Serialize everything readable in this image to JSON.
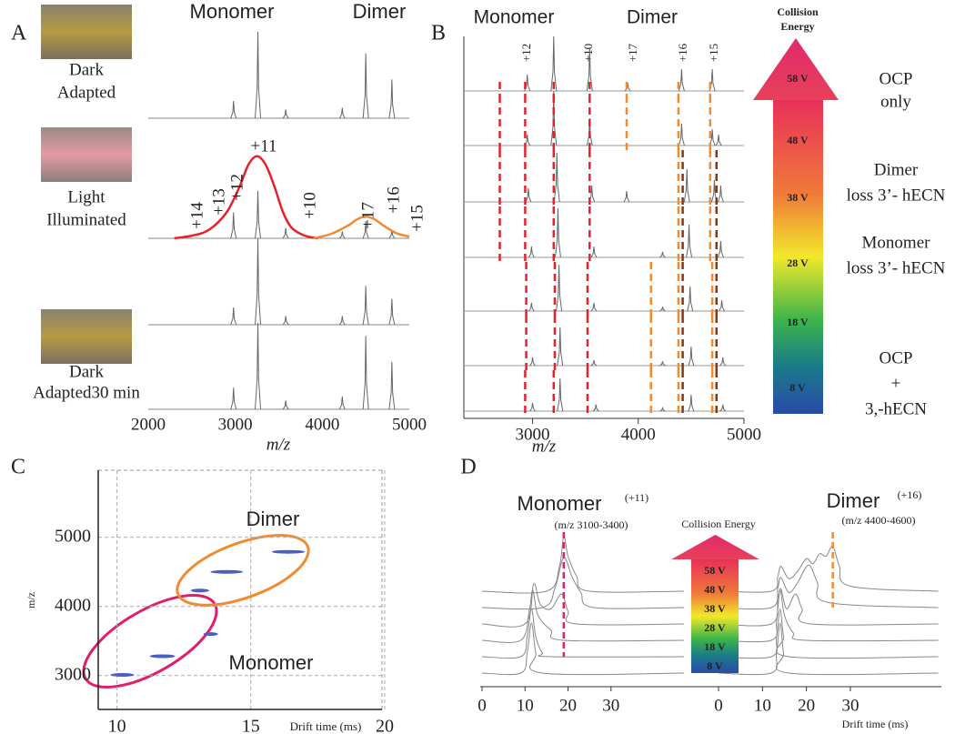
{
  "chart_data": [
    {
      "type": "spectrum",
      "label": "A",
      "annotations": [
        {
          "text": "Monomer",
          "color": "#e8202a"
        },
        {
          "text": "Dimer",
          "color": "#f28a30"
        }
      ],
      "charges": [
        "+14",
        "+13",
        "+12",
        "+11",
        "+10",
        "+17",
        "+16",
        "+15"
      ],
      "xlabel": "m/z",
      "xlim": [
        2000,
        5000
      ],
      "xticks": [
        2000,
        3000,
        4000,
        5000
      ],
      "series": [
        {
          "label": [
            "Dark",
            "Adapted"
          ],
          "color": "#666",
          "x": [
            2980,
            3260,
            3580,
            4230,
            4500,
            4800
          ],
          "values": [
            20,
            100,
            10,
            12,
            75,
            45
          ]
        },
        {
          "label": [
            "Light",
            "Illuminated"
          ],
          "color": "#666",
          "x": [
            2980,
            3260,
            3580,
            4230,
            4500,
            4800
          ],
          "values": [
            30,
            55,
            12,
            8,
            20,
            10
          ],
          "envelopes": [
            {
              "color": "#e8202a",
              "x": [
                2300,
                2500,
                2700,
                2900,
                3050,
                3150,
                3250,
                3350,
                3450,
                3550,
                3650,
                3800,
                3950
              ],
              "values": [
                0,
                3,
                10,
                30,
                60,
                85,
                95,
                85,
                60,
                30,
                12,
                3,
                0
              ]
            },
            {
              "color": "#f28a30",
              "x": [
                3900,
                4100,
                4300,
                4400,
                4500,
                4600,
                4700,
                4850,
                5000
              ],
              "values": [
                0,
                5,
                15,
                22,
                25,
                22,
                15,
                6,
                2
              ]
            }
          ]
        },
        {
          "color": "#666",
          "x": [
            2980,
            3260,
            3580,
            4230,
            4500,
            4800
          ],
          "values": [
            20,
            100,
            10,
            10,
            45,
            30
          ]
        },
        {
          "label": [
            "Dark",
            "Adapted30 min"
          ],
          "color": "#666",
          "x": [
            2980,
            3260,
            3580,
            4230,
            4500,
            4800
          ],
          "values": [
            25,
            100,
            10,
            15,
            85,
            55
          ]
        }
      ]
    },
    {
      "type": "stacked-spectrum",
      "label": "B",
      "annotations": [
        {
          "text": "Monomer",
          "color": "#e8202a"
        },
        {
          "text": "Dimer",
          "color": "#f28a30"
        }
      ],
      "charges": [
        "+12",
        "+10",
        "+17",
        "+16",
        "+15"
      ],
      "xlabel": "m/z",
      "xlim": [
        2350,
        5000
      ],
      "xticks": [
        3000,
        4000,
        5000
      ],
      "colorbar_title": [
        "Collision",
        "Energy"
      ],
      "energies": [
        "58 V",
        "48 V",
        "38 V",
        "28 V",
        "18 V",
        "8 V"
      ],
      "notes": [
        [
          "OCP",
          "only"
        ],
        [
          "Dimer",
          "loss 3’- hECN"
        ],
        [
          "Monomer",
          "loss 3’- hECN"
        ],
        [
          "OCP",
          "+",
          "3,-hECN"
        ]
      ],
      "series": [
        {
          "color": "#666",
          "x": [
            2950,
            3200,
            3540,
            3900,
            4410,
            4700
          ],
          "values": [
            30,
            100,
            80,
            15,
            40,
            40
          ]
        },
        {
          "color": "#666",
          "x": [
            2950,
            3200,
            3540,
            4410,
            4700,
            4760
          ],
          "values": [
            20,
            100,
            50,
            40,
            30,
            20
          ]
        },
        {
          "color": "#666",
          "x": [
            2960,
            3230,
            3560,
            3890,
            4460,
            4720,
            4780
          ],
          "values": [
            25,
            90,
            30,
            20,
            60,
            40,
            30
          ]
        },
        {
          "color": "#666",
          "x": [
            2990,
            3240,
            3580,
            4230,
            4480,
            4780
          ],
          "values": [
            20,
            90,
            20,
            10,
            60,
            30
          ]
        },
        {
          "color": "#666",
          "x": [
            2990,
            3250,
            3580,
            4230,
            4490,
            4790
          ],
          "values": [
            15,
            85,
            15,
            8,
            45,
            20
          ]
        },
        {
          "color": "#666",
          "x": [
            3000,
            3260,
            3580,
            4230,
            4500,
            4800
          ],
          "values": [
            15,
            70,
            10,
            8,
            35,
            15
          ]
        },
        {
          "color": "#666",
          "x": [
            3000,
            3260,
            3600,
            4230,
            4500,
            4800
          ],
          "values": [
            15,
            60,
            12,
            6,
            30,
            12
          ]
        }
      ],
      "dashed": [
        {
          "color": "#e8202a",
          "x": [
            2690,
            2690,
            2690,
            2690,
            null,
            null,
            null
          ]
        },
        {
          "color": "#e8202a",
          "x": [
            2930,
            2930,
            2930,
            2930,
            2940,
            2940,
            2930
          ]
        },
        {
          "color": "#e8202a",
          "x": [
            3200,
            3200,
            3200,
            3200,
            3210,
            3210,
            3200
          ]
        },
        {
          "color": "#e8202a",
          "x": [
            3540,
            3540,
            3540,
            3540,
            3520,
            3520,
            3520
          ]
        },
        {
          "color": "#f28a30",
          "x": [
            3890,
            3890,
            null,
            null,
            null,
            null,
            null
          ]
        },
        {
          "color": "#f28a30",
          "x": [
            null,
            null,
            null,
            null,
            4120,
            4120,
            4120
          ]
        },
        {
          "color": "#f28a30",
          "x": [
            4380,
            4380,
            4380,
            4380,
            4380,
            4380,
            4380
          ]
        },
        {
          "color": "#f28a30",
          "x": [
            4680,
            4680,
            4680,
            4680,
            4700,
            4700,
            4700
          ]
        },
        {
          "color": "#7a3b1e",
          "x": [
            null,
            null,
            4420,
            4420,
            4420,
            4420,
            4420
          ]
        },
        {
          "color": "#7a3b1e",
          "x": [
            null,
            null,
            4740,
            4740,
            4740,
            4740,
            4740
          ]
        }
      ]
    },
    {
      "type": "scatter",
      "label": "C",
      "annotations": [
        {
          "text": "Dimer",
          "color": "#f28a30"
        },
        {
          "text": "Monomer",
          "color": "#e8202a"
        }
      ],
      "xlabel": "Drift time (ms)",
      "ylabel": "m/z",
      "xlim": [
        9.3,
        19.9
      ],
      "ylim": [
        2510,
        5970
      ],
      "xticks": [
        10,
        15,
        20
      ],
      "yticks": [
        3000,
        4000,
        5000
      ],
      "grid": true,
      "color": "#4a5fc0",
      "x": [
        10.2,
        11.7,
        13.5,
        13.1,
        14.1,
        16.4
      ],
      "values": [
        3010,
        3280,
        3600,
        4230,
        4500,
        4790
      ]
    },
    {
      "type": "drift",
      "label": "D",
      "annotations": [
        {
          "text": "Monomer",
          "color": "#e0206e"
        },
        {
          "text": "(+11)",
          "color": "#e0206e"
        },
        {
          "text": "(m/z 3100-3400)",
          "color": "#e0206e"
        },
        {
          "text": "Dimer",
          "color": "#f28a30"
        },
        {
          "text": "(+16)",
          "color": "#f28a30"
        },
        {
          "text": "(m/z 4400-4600)",
          "color": "#f28a30"
        }
      ],
      "colorbar_title": "Collision Energy",
      "energies": [
        "58 V",
        "48 V",
        "38 V",
        "28 V",
        "18 V",
        "8 V"
      ],
      "xlabel": "Drift time (ms)",
      "panels": [
        {
          "xlim": [
            0,
            47.6
          ],
          "xticks": [
            0,
            10,
            20,
            30
          ],
          "marker": 19,
          "marker_color": "#e0206e",
          "series": [
            {
              "color": "#888",
              "x": [
                0,
                9,
                10.5,
                11.5,
                12.5,
                14,
                47
              ],
              "values": [
                0,
                0,
                40,
                100,
                40,
                0,
                0
              ]
            },
            {
              "color": "#888",
              "x": [
                0,
                9,
                10.5,
                11.5,
                12.5,
                14,
                16,
                47
              ],
              "values": [
                0,
                0,
                40,
                95,
                40,
                8,
                0,
                0
              ]
            },
            {
              "color": "#888",
              "x": [
                0,
                9,
                11,
                11.8,
                13,
                16,
                19,
                47
              ],
              "values": [
                0,
                0,
                60,
                100,
                50,
                20,
                0,
                0
              ]
            },
            {
              "color": "#888",
              "x": [
                0,
                10,
                12,
                13.5,
                16,
                18.5,
                20,
                22,
                47
              ],
              "values": [
                0,
                0,
                80,
                40,
                30,
                60,
                25,
                0,
                0
              ]
            },
            {
              "color": "#888",
              "x": [
                0,
                14,
                17,
                19,
                21,
                23,
                26,
                47
              ],
              "values": [
                0,
                0,
                40,
                100,
                60,
                30,
                0,
                0
              ]
            },
            {
              "color": "#888",
              "x": [
                0,
                15,
                18,
                19,
                20,
                22,
                25,
                47
              ],
              "values": [
                0,
                0,
                50,
                110,
                70,
                30,
                0,
                0
              ]
            }
          ]
        },
        {
          "xlim": [
            0,
            50.7
          ],
          "xticks": [
            0,
            10,
            20,
            30
          ],
          "marker": 26,
          "marker_color": "#f28a30",
          "series": [
            {
              "color": "#888",
              "x": [
                0,
                12,
                13.2,
                14,
                14.8,
                16,
                50
              ],
              "values": [
                0,
                0,
                40,
                100,
                40,
                0,
                0
              ]
            },
            {
              "color": "#888",
              "x": [
                0,
                12,
                13.2,
                14,
                14.8,
                16,
                50
              ],
              "values": [
                0,
                0,
                40,
                95,
                40,
                0,
                0
              ]
            },
            {
              "color": "#888",
              "x": [
                0,
                12,
                13.2,
                14,
                15,
                17,
                20,
                50
              ],
              "values": [
                0,
                0,
                40,
                100,
                50,
                15,
                0,
                0
              ]
            },
            {
              "color": "#888",
              "x": [
                0,
                12,
                13.5,
                14.2,
                15.5,
                17.5,
                19,
                21,
                50
              ],
              "values": [
                0,
                0,
                50,
                70,
                30,
                60,
                30,
                0,
                0
              ]
            },
            {
              "color": "#888",
              "x": [
                0,
                12,
                13.5,
                14.2,
                16,
                18,
                20.5,
                22.5,
                25,
                50
              ],
              "values": [
                0,
                0,
                40,
                60,
                30,
                50,
                85,
                50,
                10,
                0
              ]
            },
            {
              "color": "#888",
              "x": [
                0,
                12,
                13.5,
                14.2,
                16,
                18,
                20,
                21.5,
                23,
                24.5,
                26,
                27.5,
                30,
                50
              ],
              "values": [
                0,
                0,
                30,
                50,
                25,
                40,
                65,
                55,
                75,
                70,
                90,
                50,
                10,
                0
              ]
            }
          ]
        }
      ]
    }
  ]
}
